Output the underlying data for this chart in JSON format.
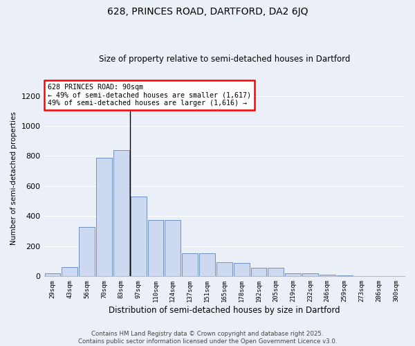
{
  "title1": "628, PRINCES ROAD, DARTFORD, DA2 6JQ",
  "title2": "Size of property relative to semi-detached houses in Dartford",
  "xlabel": "Distribution of semi-detached houses by size in Dartford",
  "ylabel": "Number of semi-detached properties",
  "categories": [
    "29sqm",
    "43sqm",
    "56sqm",
    "70sqm",
    "83sqm",
    "97sqm",
    "110sqm",
    "124sqm",
    "137sqm",
    "151sqm",
    "165sqm",
    "178sqm",
    "192sqm",
    "205sqm",
    "219sqm",
    "232sqm",
    "246sqm",
    "259sqm",
    "273sqm",
    "286sqm",
    "300sqm"
  ],
  "values": [
    20,
    60,
    330,
    790,
    840,
    530,
    375,
    375,
    155,
    155,
    95,
    88,
    57,
    57,
    20,
    18,
    12,
    5,
    0,
    0,
    0
  ],
  "bar_color": "#ccd9f0",
  "bar_edge_color": "#7090c0",
  "background_color": "#eaeff8",
  "grid_color": "#ffffff",
  "annotation_text": "628 PRINCES ROAD: 90sqm\n← 49% of semi-detached houses are smaller (1,617)\n49% of semi-detached houses are larger (1,616) →",
  "vline_x_index": 4,
  "ylim": [
    0,
    1300
  ],
  "yticks": [
    0,
    200,
    400,
    600,
    800,
    1000,
    1200
  ],
  "footer1": "Contains HM Land Registry data © Crown copyright and database right 2025.",
  "footer2": "Contains public sector information licensed under the Open Government Licence v3.0."
}
